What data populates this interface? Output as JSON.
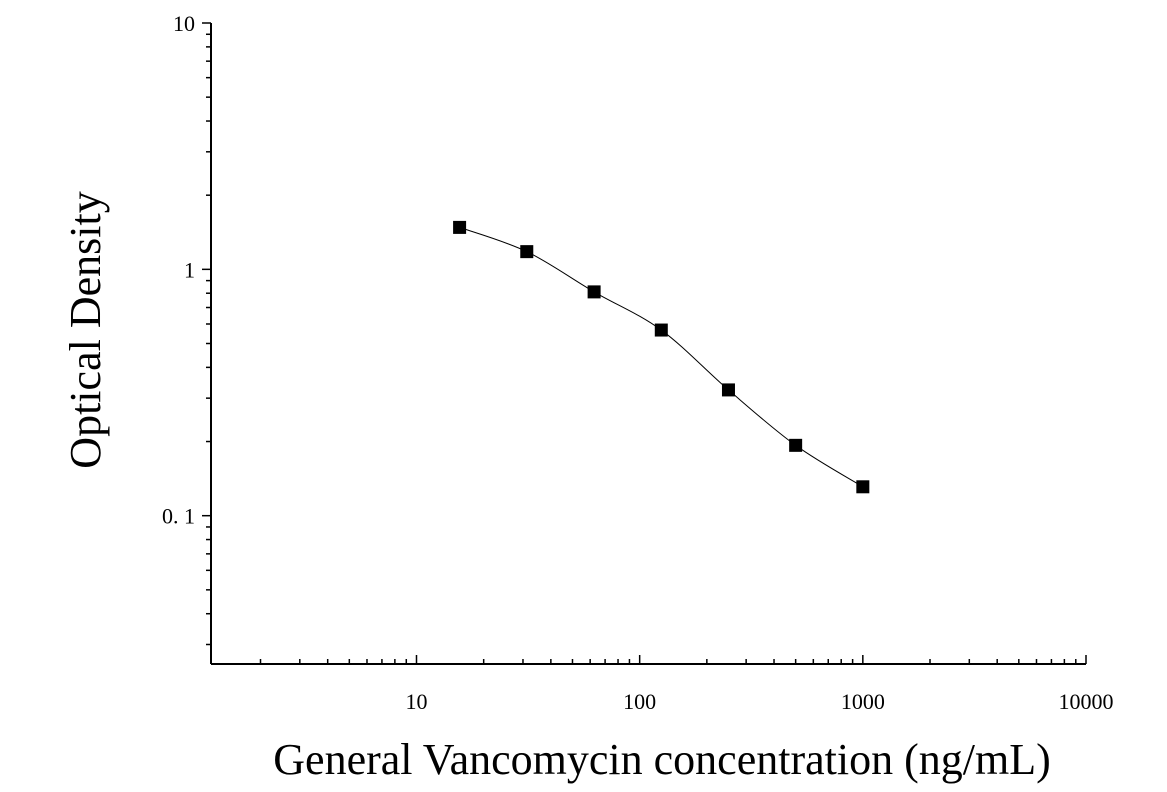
{
  "chart_data": {
    "type": "scatter",
    "title": "",
    "xlabel": "General Vancomycin concentration (ng/mL)",
    "ylabel": "Optical Density",
    "x_scale": "log",
    "y_scale": "log",
    "xlim": [
      1.2,
      10000
    ],
    "ylim": [
      0.025,
      10
    ],
    "x_ticks": [
      {
        "value": 10,
        "label": "10"
      },
      {
        "value": 100,
        "label": "100"
      },
      {
        "value": 1000,
        "label": "1000"
      },
      {
        "value": 10000,
        "label": "10000"
      }
    ],
    "y_ticks": [
      {
        "value": 0.1,
        "label": "0. 1"
      },
      {
        "value": 1,
        "label": "1"
      },
      {
        "value": 10,
        "label": "10"
      }
    ],
    "grid": false,
    "legend": "none",
    "series": [
      {
        "marker": "square",
        "color": "#000000",
        "fit_line": true,
        "x": [
          15.6,
          31.2,
          62.5,
          125,
          250,
          500,
          1000
        ],
        "y": [
          1.48,
          1.18,
          0.81,
          0.567,
          0.324,
          0.193,
          0.131
        ]
      }
    ]
  }
}
